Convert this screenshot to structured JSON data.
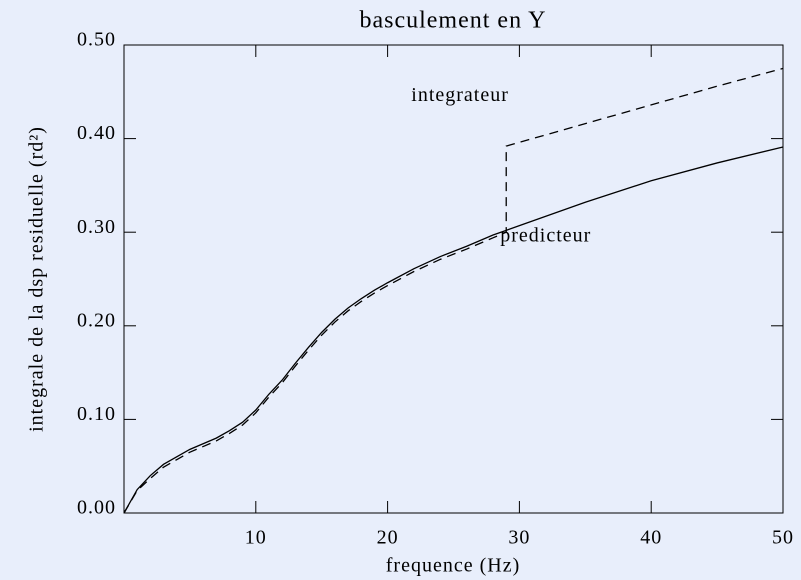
{
  "chart_data": {
    "type": "line",
    "title": "basculement en Y",
    "xlabel": "frequence (Hz)",
    "ylabel": "integrale de la dsp residuelle (rd²)",
    "xlim": [
      0,
      50
    ],
    "ylim": [
      0,
      0.5
    ],
    "xticks": [
      10,
      20,
      30,
      40,
      50
    ],
    "yticks": [
      {
        "value": 0,
        "label": "0.00"
      },
      {
        "value": 0.1,
        "label": "0.10"
      },
      {
        "value": 0.2,
        "label": "0.20"
      },
      {
        "value": 0.3,
        "label": "0.30"
      },
      {
        "value": 0.4,
        "label": "0.40"
      },
      {
        "value": 0.5,
        "label": "0.50"
      }
    ],
    "grid": false,
    "series": [
      {
        "color": "#000000",
        "dash": false,
        "x": [
          0,
          1,
          2,
          3,
          4,
          5,
          6,
          7,
          8,
          9,
          10,
          11,
          12,
          13,
          14,
          15,
          16,
          17,
          18,
          19,
          20,
          22,
          24,
          26,
          28,
          29,
          30,
          35,
          40,
          45,
          50
        ],
        "values": [
          0,
          0.025,
          0.04,
          0.052,
          0.06,
          0.068,
          0.074,
          0.08,
          0.088,
          0.097,
          0.11,
          0.127,
          0.142,
          0.16,
          0.177,
          0.193,
          0.207,
          0.219,
          0.229,
          0.238,
          0.246,
          0.261,
          0.274,
          0.285,
          0.297,
          0.302,
          0.307,
          0.332,
          0.355,
          0.374,
          0.391
        ]
      },
      {
        "color": "#000000",
        "dash": true,
        "x": [
          0,
          1,
          2,
          3,
          4,
          5,
          6,
          7,
          8,
          9,
          10,
          11,
          12,
          13,
          14,
          15,
          16,
          17,
          18,
          19,
          20,
          22,
          24,
          26,
          28,
          29,
          29,
          30,
          35,
          40,
          45,
          50
        ],
        "values": [
          0,
          0.024,
          0.037,
          0.049,
          0.057,
          0.065,
          0.071,
          0.077,
          0.085,
          0.094,
          0.107,
          0.124,
          0.139,
          0.157,
          0.174,
          0.19,
          0.204,
          0.216,
          0.226,
          0.235,
          0.243,
          0.258,
          0.271,
          0.282,
          0.294,
          0.3,
          0.392,
          0.396,
          0.416,
          0.436,
          0.456,
          0.475
        ]
      }
    ],
    "annotations": [
      {
        "text": "integrateur",
        "x": 25.5,
        "y": 0.445
      },
      {
        "text": "predicteur",
        "x": 32,
        "y": 0.295
      }
    ]
  }
}
